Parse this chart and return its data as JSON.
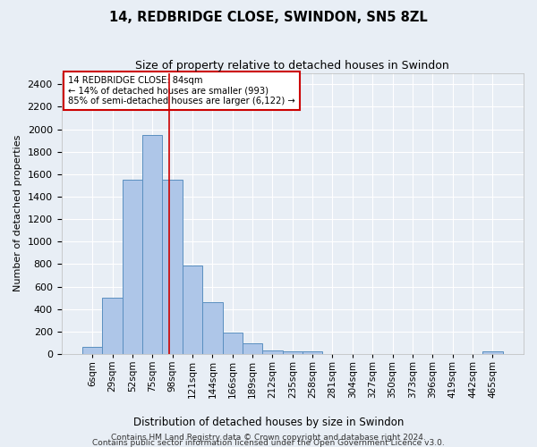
{
  "title1": "14, REDBRIDGE CLOSE, SWINDON, SN5 8ZL",
  "title2": "Size of property relative to detached houses in Swindon",
  "xlabel": "Distribution of detached houses by size in Swindon",
  "ylabel": "Number of detached properties",
  "footer1": "Contains HM Land Registry data © Crown copyright and database right 2024.",
  "footer2": "Contains public sector information licensed under the Open Government Licence v3.0.",
  "annotation_line1": "14 REDBRIDGE CLOSE: 84sqm",
  "annotation_line2": "← 14% of detached houses are smaller (993)",
  "annotation_line3": "85% of semi-detached houses are larger (6,122) →",
  "bar_labels": [
    "6sqm",
    "29sqm",
    "52sqm",
    "75sqm",
    "98sqm",
    "121sqm",
    "144sqm",
    "166sqm",
    "189sqm",
    "212sqm",
    "235sqm",
    "258sqm",
    "281sqm",
    "304sqm",
    "327sqm",
    "350sqm",
    "373sqm",
    "396sqm",
    "419sqm",
    "442sqm",
    "465sqm"
  ],
  "bar_values": [
    60,
    500,
    1550,
    1950,
    1550,
    790,
    460,
    190,
    95,
    35,
    25,
    20,
    0,
    0,
    0,
    0,
    0,
    0,
    0,
    0,
    25
  ],
  "bar_color": "#aec6e8",
  "bar_edge_color": "#5a8fc0",
  "bar_width": 1.0,
  "red_line_x": 3.83,
  "ylim": [
    0,
    2500
  ],
  "yticks": [
    0,
    200,
    400,
    600,
    800,
    1000,
    1200,
    1400,
    1600,
    1800,
    2000,
    2200,
    2400
  ],
  "background_color": "#e8eef5",
  "plot_bg_color": "#e8eef5",
  "grid_color": "#ffffff",
  "annotation_box_color": "#cc0000",
  "red_line_color": "#cc0000"
}
